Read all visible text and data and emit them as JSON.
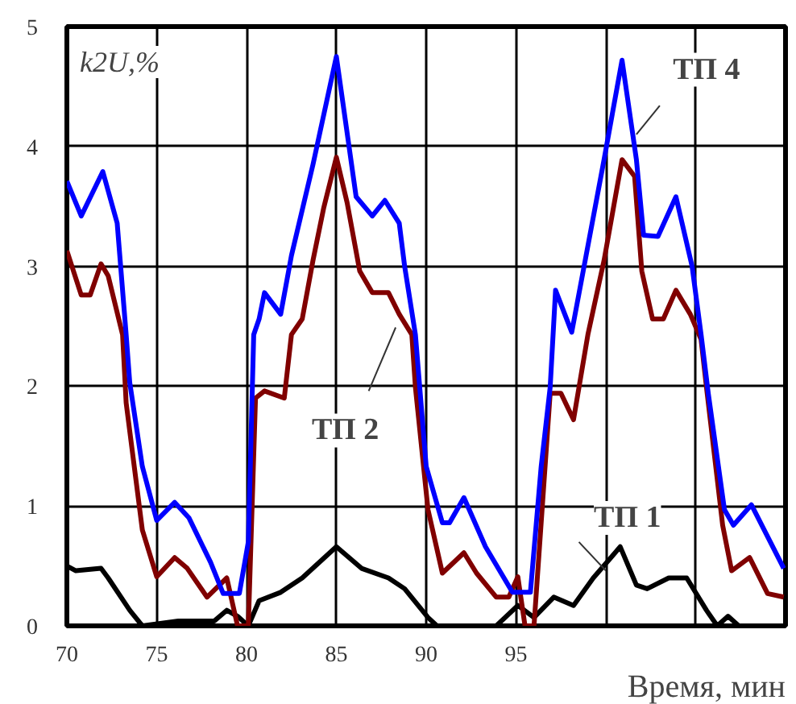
{
  "chart_data": {
    "type": "line",
    "xlabel": "Время, мин",
    "ylabel": "k2U,%",
    "xlim": [
      70,
      110
    ],
    "xticks": [
      70,
      75,
      80,
      85,
      90,
      95,
      {
        "value": 100,
        "label": null
      },
      {
        "value": 105,
        "label": null
      }
    ],
    "ylim": [
      0,
      5
    ],
    "yticks": [
      0,
      1,
      2,
      3,
      4,
      5
    ],
    "grid": true,
    "marker": "none",
    "line_style": "solid",
    "series": [
      {
        "name": "ТП 1",
        "color": "#000000",
        "x": [
          70.0,
          70.5,
          71.9,
          72.3,
          73.5,
          74.2,
          76.2,
          78.2,
          78.9,
          79.5,
          80.1,
          80.7,
          81.9,
          83.1,
          85.0,
          86.4,
          87.9,
          88.8,
          90.1,
          90.6,
          93.9,
          95.1,
          96.0,
          97.1,
          98.2,
          99.3,
          100.8,
          101.7,
          102.3,
          103.5,
          104.5,
          105.6,
          106.2,
          106.8,
          107.4,
          109.9
        ],
        "values": [
          0.5,
          0.46,
          0.48,
          0.4,
          0.13,
          0,
          0.04,
          0.04,
          0.13,
          0.08,
          0,
          0.21,
          0.28,
          0.4,
          0.66,
          0.48,
          0.4,
          0.31,
          0.07,
          0,
          0,
          0.17,
          0.07,
          0.24,
          0.17,
          0.4,
          0.66,
          0.34,
          0.31,
          0.4,
          0.4,
          0.13,
          0,
          0.08,
          0,
          0
        ]
      },
      {
        "name": "ТП 2",
        "color": "#800000",
        "x": [
          70.0,
          70.8,
          71.3,
          71.9,
          72.3,
          73.1,
          73.3,
          74.2,
          75.0,
          76.0,
          76.7,
          77.8,
          78.9,
          79.5,
          80.1,
          80.5,
          81.0,
          82.1,
          82.5,
          83.1,
          83.7,
          84.3,
          85.0,
          85.6,
          86.3,
          87.0,
          87.9,
          88.5,
          89.2,
          89.4,
          90.1,
          90.9,
          92.1,
          92.8,
          93.9,
          94.6,
          95.1,
          95.5,
          96.0,
          96.9,
          97.5,
          98.2,
          99.0,
          99.9,
          100.9,
          101.6,
          102.0,
          102.6,
          103.2,
          103.9,
          104.7,
          105.3,
          105.6,
          106.5,
          107.0,
          108.0,
          109.0,
          109.9
        ],
        "values": [
          3.13,
          2.76,
          2.76,
          3.02,
          2.92,
          2.43,
          1.86,
          0.8,
          0.41,
          0.57,
          0.48,
          0.24,
          0.4,
          0,
          0,
          1.9,
          1.96,
          1.9,
          2.43,
          2.56,
          3.05,
          3.49,
          3.91,
          3.53,
          2.96,
          2.78,
          2.78,
          2.6,
          2.43,
          1.99,
          0.97,
          0.44,
          0.61,
          0.44,
          0.24,
          0.24,
          0.41,
          0,
          0,
          1.94,
          1.94,
          1.72,
          2.43,
          3.05,
          3.89,
          3.75,
          2.96,
          2.56,
          2.56,
          2.8,
          2.6,
          2.39,
          1.99,
          0.84,
          0.46,
          0.57,
          0.27,
          0.24
        ]
      },
      {
        "name": "ТП 4",
        "color": "#0000ff",
        "x": [
          70.0,
          70.8,
          72.0,
          72.8,
          73.3,
          73.5,
          74.2,
          75.0,
          76.0,
          76.8,
          78.0,
          78.7,
          79.6,
          80.1,
          80.4,
          80.7,
          81.0,
          81.9,
          82.5,
          83.7,
          85.0,
          86.1,
          87.0,
          87.7,
          88.5,
          88.8,
          89.4,
          90.0,
          90.9,
          91.3,
          92.1,
          93.3,
          94.8,
          95.8,
          96.4,
          96.9,
          97.2,
          98.1,
          98.9,
          99.9,
          100.9,
          101.7,
          102.1,
          102.9,
          103.9,
          104.8,
          105.3,
          105.7,
          106.6,
          107.1,
          108.1,
          109.9
        ],
        "values": [
          3.71,
          3.42,
          3.79,
          3.36,
          2.43,
          2.03,
          1.33,
          0.88,
          1.03,
          0.9,
          0.53,
          0.27,
          0.27,
          0.7,
          2.43,
          2.56,
          2.78,
          2.6,
          3.09,
          3.85,
          4.75,
          3.58,
          3.42,
          3.55,
          3.36,
          3.0,
          2.43,
          1.33,
          0.86,
          0.86,
          1.07,
          0.66,
          0.28,
          0.28,
          1.33,
          1.99,
          2.8,
          2.45,
          3.09,
          3.89,
          4.72,
          3.89,
          3.26,
          3.25,
          3.58,
          3.0,
          2.43,
          1.94,
          0.97,
          0.84,
          1.01,
          0.48
        ]
      }
    ]
  }
}
